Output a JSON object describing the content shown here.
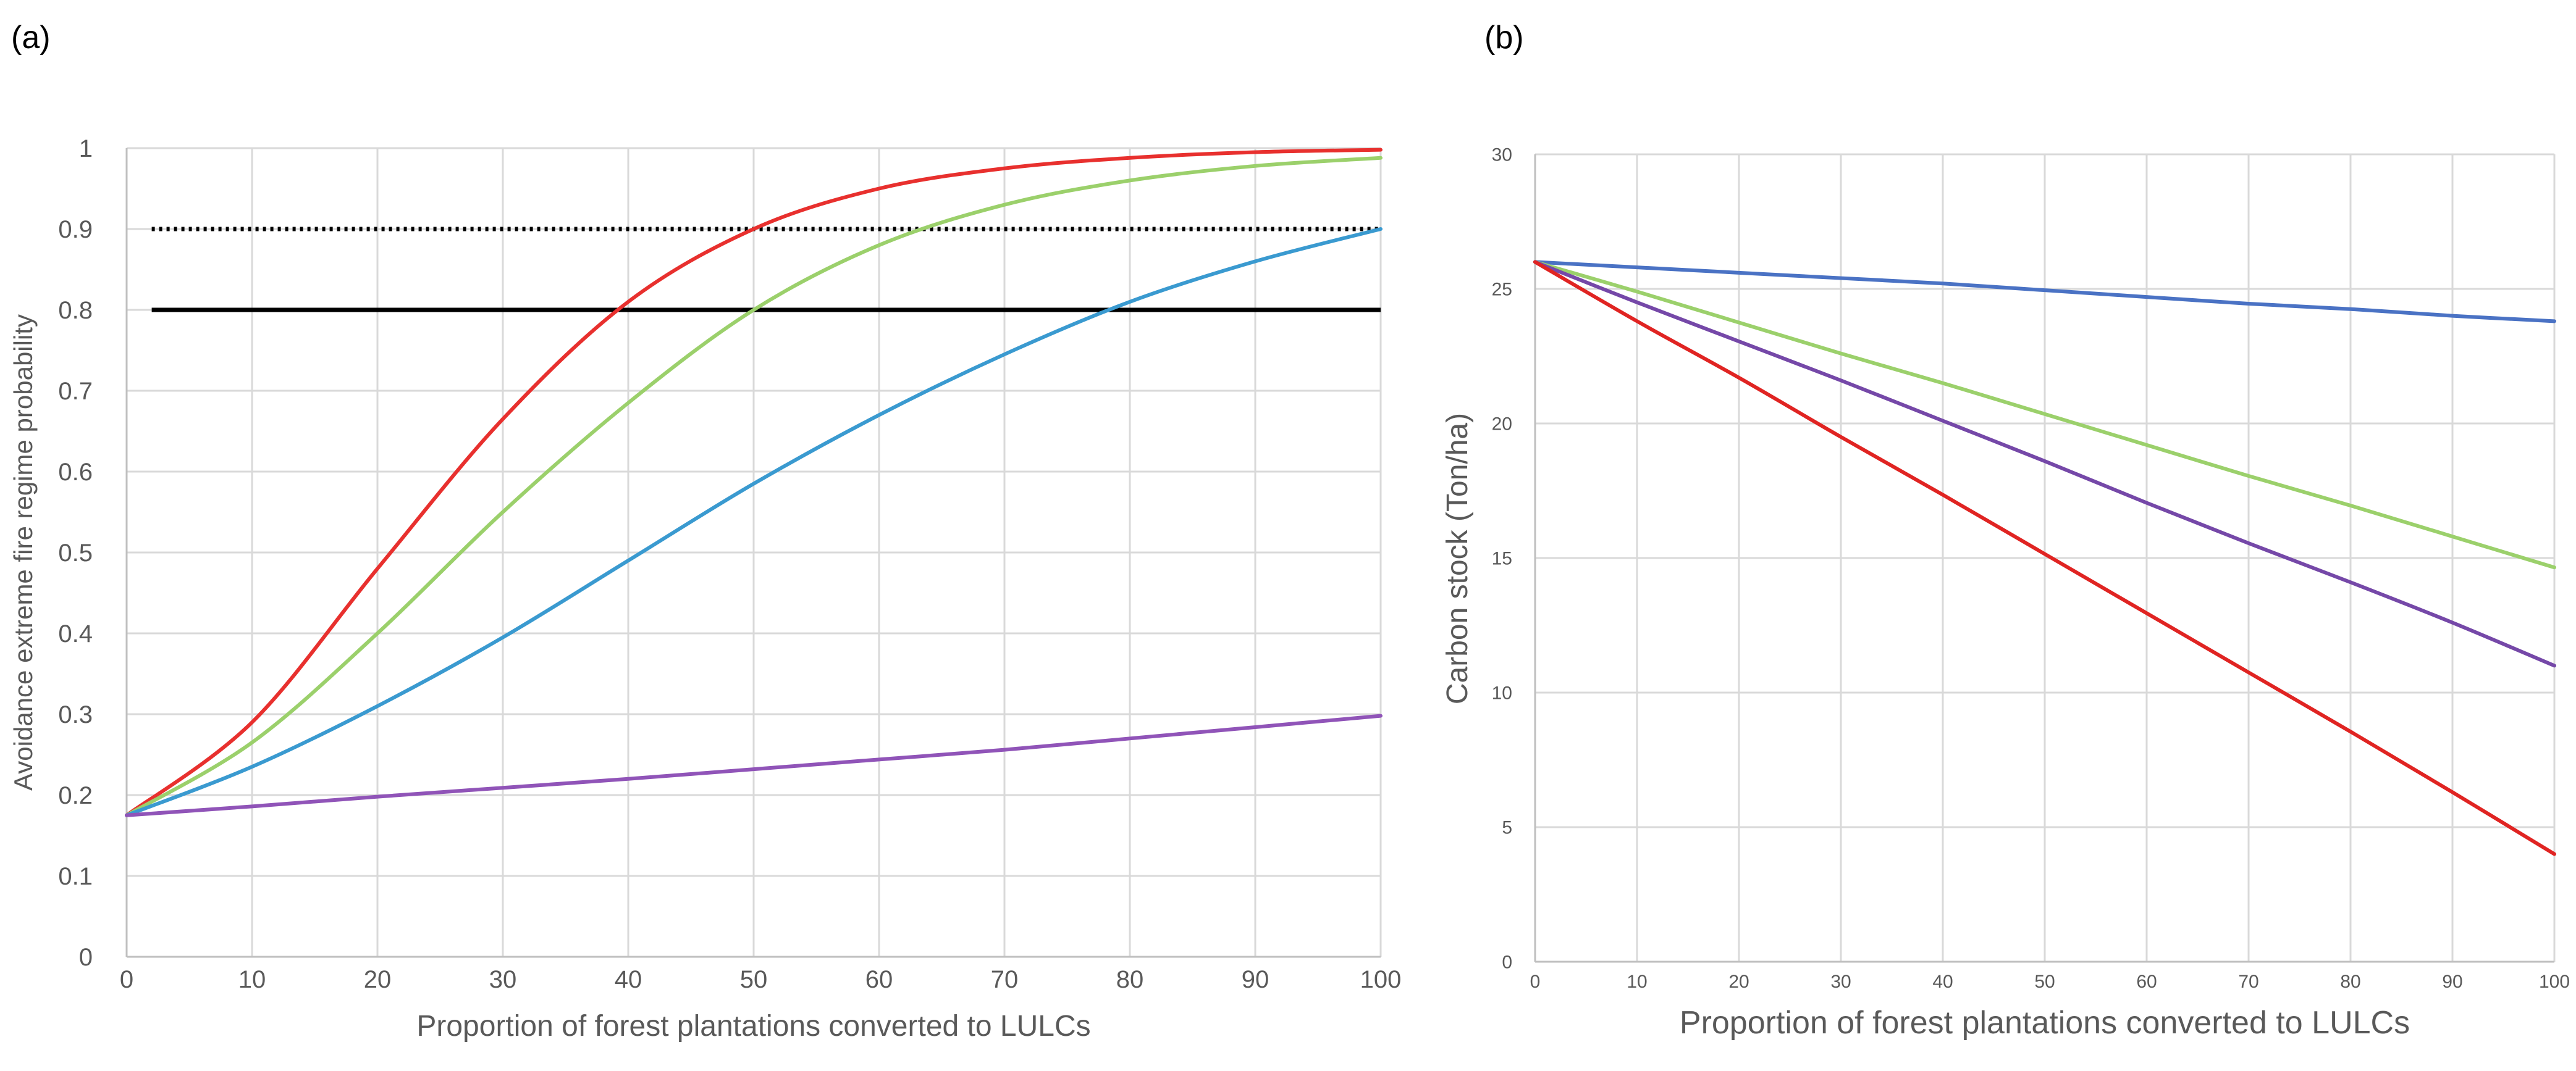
{
  "chart_data": [
    {
      "type": "line",
      "panel_label": "(a)",
      "xlabel": "Proportion of forest plantations converted to LULCs",
      "ylabel": "Avoidance extreme fire regime probability",
      "xlim": [
        0,
        100
      ],
      "ylim": [
        0,
        1
      ],
      "grid": true,
      "x_ticks": [
        0,
        10,
        20,
        30,
        40,
        50,
        60,
        70,
        80,
        90,
        100
      ],
      "y_ticks": [
        0,
        0.1,
        0.2,
        0.3,
        0.4,
        0.5,
        0.6,
        0.7,
        0.8,
        0.9,
        1
      ],
      "x": [
        0,
        10,
        20,
        30,
        40,
        50,
        60,
        70,
        80,
        90,
        100
      ],
      "series": [
        {
          "name": "red",
          "color": "#e8302e",
          "values": [
            0.175,
            0.29,
            0.48,
            0.665,
            0.81,
            0.9,
            0.95,
            0.975,
            0.988,
            0.995,
            0.998
          ]
        },
        {
          "name": "green",
          "color": "#9bd06b",
          "values": [
            0.175,
            0.265,
            0.4,
            0.55,
            0.685,
            0.8,
            0.88,
            0.93,
            0.96,
            0.978,
            0.988
          ]
        },
        {
          "name": "blue",
          "color": "#3a9ad0",
          "values": [
            0.175,
            0.235,
            0.31,
            0.395,
            0.49,
            0.585,
            0.67,
            0.745,
            0.81,
            0.86,
            0.9
          ]
        },
        {
          "name": "purple",
          "color": "#9054b8",
          "values": [
            0.175,
            0.186,
            0.198,
            0.209,
            0.22,
            0.232,
            0.244,
            0.256,
            0.27,
            0.284,
            0.298
          ]
        }
      ],
      "reference_lines": [
        {
          "y": 0.9,
          "style": "dotted",
          "x_from": 2,
          "x_to": 100,
          "color": "#000000"
        },
        {
          "y": 0.8,
          "style": "solid",
          "x_from": 2,
          "x_to": 100,
          "color": "#000000"
        }
      ]
    },
    {
      "type": "line",
      "panel_label": "(b)",
      "xlabel": "Proportion of forest plantations converted to LULCs",
      "ylabel": "Carbon stock (Ton/ha)",
      "xlim": [
        0,
        100
      ],
      "ylim": [
        0,
        30
      ],
      "grid": true,
      "x_ticks": [
        0,
        10,
        20,
        30,
        40,
        50,
        60,
        70,
        80,
        90,
        100
      ],
      "y_ticks": [
        0,
        5,
        10,
        15,
        20,
        25,
        30
      ],
      "x": [
        0,
        10,
        20,
        30,
        40,
        50,
        60,
        70,
        80,
        90,
        100
      ],
      "series": [
        {
          "name": "blue",
          "color": "#4a72c4",
          "values": [
            26,
            25.8,
            25.6,
            25.4,
            25.2,
            24.95,
            24.7,
            24.45,
            24.25,
            24.0,
            23.8
          ]
        },
        {
          "name": "green",
          "color": "#9bd06b",
          "values": [
            26,
            24.9,
            23.75,
            22.6,
            21.5,
            20.35,
            19.2,
            18.05,
            16.95,
            15.8,
            14.65
          ]
        },
        {
          "name": "purple",
          "color": "#7548a8",
          "values": [
            26,
            24.5,
            23.05,
            21.6,
            20.1,
            18.6,
            17.05,
            15.55,
            14.1,
            12.6,
            11.0
          ]
        },
        {
          "name": "red",
          "color": "#e02422",
          "values": [
            26,
            23.8,
            21.7,
            19.5,
            17.35,
            15.15,
            12.95,
            10.75,
            8.55,
            6.3,
            4.0
          ]
        }
      ]
    }
  ]
}
